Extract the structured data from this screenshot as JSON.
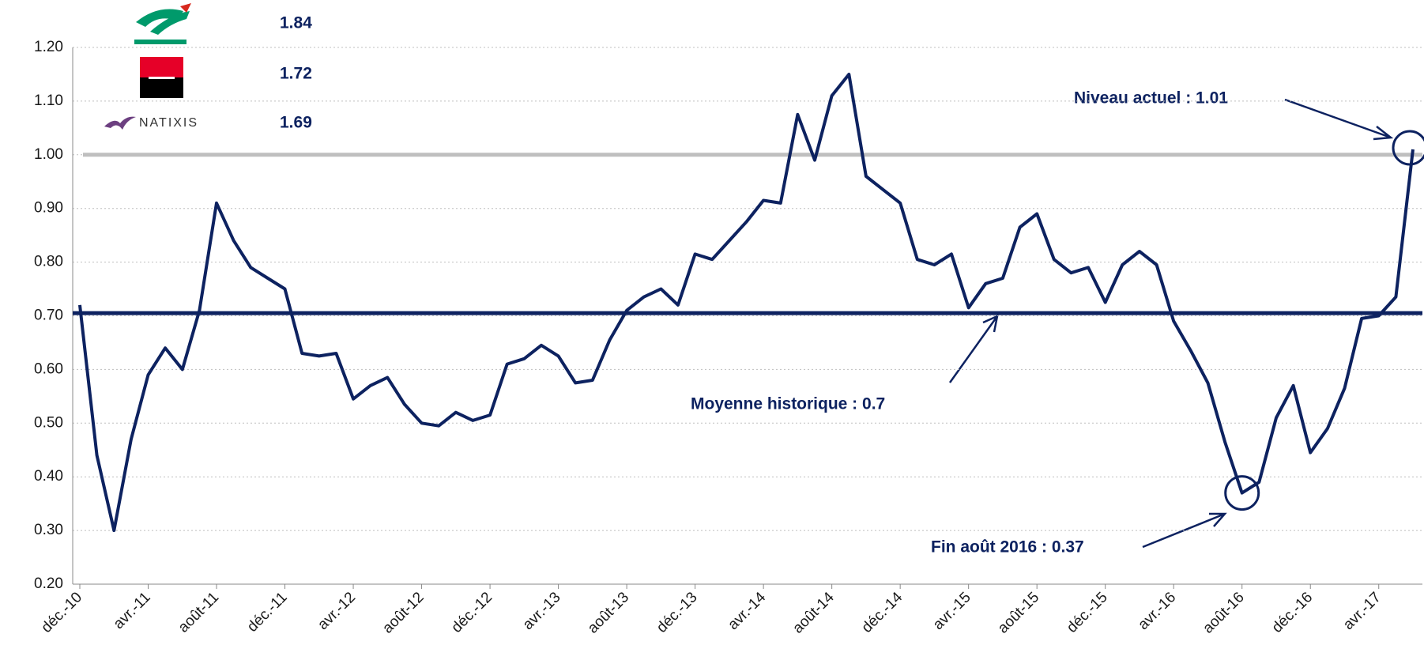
{
  "chart_data": {
    "type": "line",
    "categories": [
      "déc.-10",
      null,
      null,
      null,
      "avr.-11",
      null,
      null,
      null,
      "août-11",
      null,
      null,
      null,
      "déc.-11",
      null,
      null,
      null,
      "avr.-12",
      null,
      null,
      null,
      "août-12",
      null,
      null,
      null,
      "déc.-12",
      null,
      null,
      null,
      "avr.-13",
      null,
      null,
      null,
      "août-13",
      null,
      null,
      null,
      "déc.-13",
      null,
      null,
      null,
      "avr.-14",
      null,
      null,
      null,
      "août-14",
      null,
      null,
      null,
      "déc.-14",
      null,
      null,
      null,
      "avr.-15",
      null,
      null,
      null,
      "août-15",
      null,
      null,
      null,
      "déc.-15",
      null,
      null,
      null,
      "avr.-16",
      null,
      null,
      null,
      "août-16",
      null,
      null,
      null,
      "déc.-16",
      null,
      null,
      null,
      "avr.-17",
      null,
      null
    ],
    "series": [
      {
        "color": "#0d2260",
        "values": [
          0.72,
          0.44,
          0.3,
          0.47,
          0.59,
          0.64,
          0.6,
          0.71,
          0.91,
          0.84,
          0.79,
          0.77,
          0.75,
          0.63,
          0.625,
          0.63,
          0.545,
          0.57,
          0.585,
          0.535,
          0.5,
          0.495,
          0.52,
          0.505,
          0.515,
          0.61,
          0.62,
          0.645,
          0.625,
          0.575,
          0.58,
          0.655,
          0.71,
          0.735,
          0.75,
          0.72,
          0.815,
          0.805,
          0.84,
          0.875,
          0.915,
          0.91,
          1.075,
          0.99,
          1.11,
          1.15,
          0.96,
          0.935,
          0.91,
          0.805,
          0.795,
          0.815,
          0.715,
          0.76,
          0.77,
          0.865,
          0.89,
          0.805,
          0.78,
          0.79,
          0.725,
          0.795,
          0.82,
          0.795,
          0.69,
          0.635,
          0.575,
          0.465,
          0.37,
          0.39,
          0.51,
          0.57,
          0.445,
          0.49,
          0.565,
          0.695,
          0.7,
          0.735,
          1.01
        ]
      }
    ],
    "ylim": [
      0.2,
      1.2
    ],
    "yticks": [
      {
        "value": 0.2,
        "label": "0.20"
      },
      {
        "value": 0.3,
        "label": "0.30"
      },
      {
        "value": 0.4,
        "label": "0.40"
      },
      {
        "value": 0.5,
        "label": "0.50"
      },
      {
        "value": 0.6,
        "label": "0.60"
      },
      {
        "value": 0.7,
        "label": "0.70"
      },
      {
        "value": 0.8,
        "label": "0.80"
      },
      {
        "value": 0.9,
        "label": "0.90"
      },
      {
        "value": 1.0,
        "label": "1.00"
      },
      {
        "value": 1.1,
        "label": "1.10"
      },
      {
        "value": 1.2,
        "label": "1.20"
      }
    ],
    "grid": true,
    "hlines": [
      {
        "value": 0.705,
        "color": "#0d2260"
      },
      {
        "value": 1.0,
        "color": "#bfbfbf"
      }
    ],
    "annotations": [
      "Niveau actuel : 1.01",
      "Moyenne historique : 0.7",
      "Fin août 2016 : 0.37"
    ],
    "bank_figures": [
      1.84,
      1.72,
      1.69
    ],
    "logo_text": "NATIXIS"
  }
}
